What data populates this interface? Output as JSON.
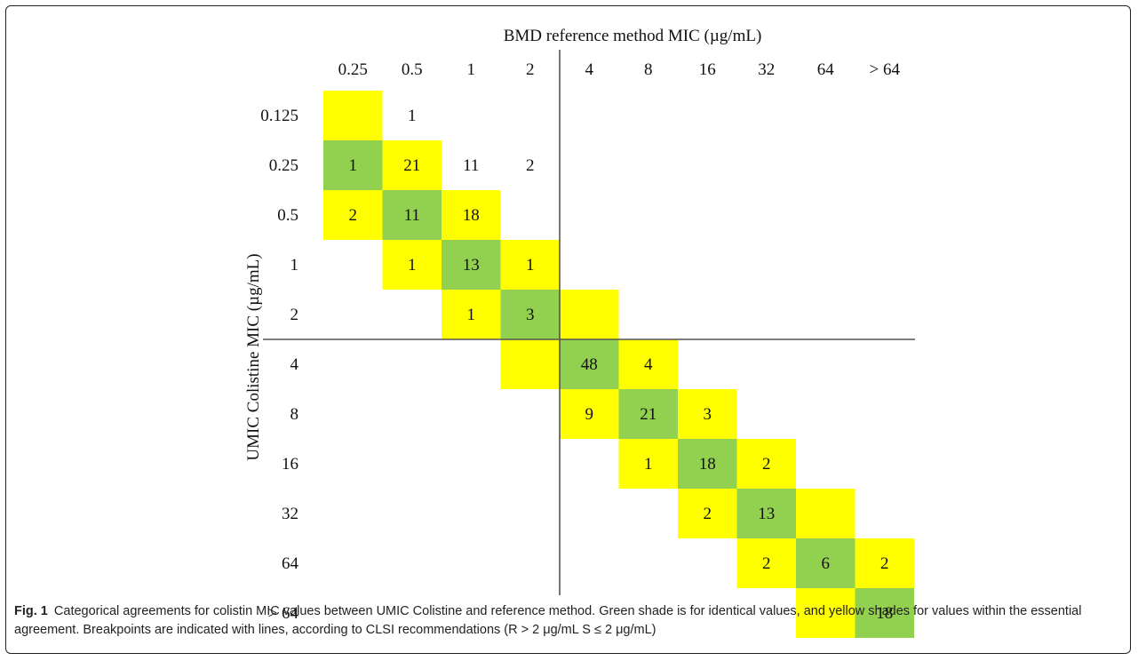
{
  "caption": {
    "label": "Fig. 1",
    "text": "Categorical agreements for colistin MIC values between UMIC Colistine and reference method. Green shade is for identical values, and yellow shades for values within the essential agreement. Breakpoints are indicated with lines, according to CLSI recommendations (R > 2 μg/mL S ≤ 2 μg/mL)"
  },
  "chart_data": {
    "type": "heatmap",
    "title": "",
    "xlabel": "BMD reference method MIC (µg/mL)",
    "ylabel": "UMIC Colistine MIC (µg/mL)",
    "x_categories": [
      "0.25",
      "0.5",
      "1",
      "2",
      "4",
      "8",
      "16",
      "32",
      "64",
      "> 64"
    ],
    "y_categories": [
      "0.125",
      "0.25",
      "0.5",
      "1",
      "2",
      "4",
      "8",
      "16",
      "32",
      "64",
      "> 64"
    ],
    "colors": {
      "identical": "#92d050",
      "essential_agreement": "#ffff00",
      "text": "#111111",
      "line": "#555555"
    },
    "legend": {
      "identical": "Green shade is for identical values",
      "essential_agreement": "yellow shades for values within the essential agreement"
    },
    "breakpoints": {
      "x_between": [
        "2",
        "4"
      ],
      "y_between": [
        "2",
        "4"
      ]
    },
    "cells": [
      {
        "row": "0.125",
        "col": "0.25",
        "shade": "yellow",
        "value": null
      },
      {
        "row": "0.125",
        "col": "0.5",
        "shade": "none",
        "value": 1
      },
      {
        "row": "0.25",
        "col": "0.25",
        "shade": "green",
        "value": 1
      },
      {
        "row": "0.25",
        "col": "0.5",
        "shade": "yellow",
        "value": 21
      },
      {
        "row": "0.25",
        "col": "1",
        "shade": "none",
        "value": 11
      },
      {
        "row": "0.25",
        "col": "2",
        "shade": "none",
        "value": 2
      },
      {
        "row": "0.5",
        "col": "0.25",
        "shade": "yellow",
        "value": 2
      },
      {
        "row": "0.5",
        "col": "0.5",
        "shade": "green",
        "value": 11
      },
      {
        "row": "0.5",
        "col": "1",
        "shade": "yellow",
        "value": 18
      },
      {
        "row": "1",
        "col": "0.5",
        "shade": "yellow",
        "value": 1
      },
      {
        "row": "1",
        "col": "1",
        "shade": "green",
        "value": 13
      },
      {
        "row": "1",
        "col": "2",
        "shade": "yellow",
        "value": 1
      },
      {
        "row": "2",
        "col": "1",
        "shade": "yellow",
        "value": 1
      },
      {
        "row": "2",
        "col": "2",
        "shade": "green",
        "value": 3
      },
      {
        "row": "2",
        "col": "4",
        "shade": "yellow",
        "value": null
      },
      {
        "row": "4",
        "col": "2",
        "shade": "yellow",
        "value": null
      },
      {
        "row": "4",
        "col": "4",
        "shade": "green",
        "value": 48
      },
      {
        "row": "4",
        "col": "8",
        "shade": "yellow",
        "value": 4
      },
      {
        "row": "8",
        "col": "4",
        "shade": "yellow",
        "value": 9
      },
      {
        "row": "8",
        "col": "8",
        "shade": "green",
        "value": 21
      },
      {
        "row": "8",
        "col": "16",
        "shade": "yellow",
        "value": 3
      },
      {
        "row": "16",
        "col": "8",
        "shade": "yellow",
        "value": 1
      },
      {
        "row": "16",
        "col": "16",
        "shade": "green",
        "value": 18
      },
      {
        "row": "16",
        "col": "32",
        "shade": "yellow",
        "value": 2
      },
      {
        "row": "32",
        "col": "16",
        "shade": "yellow",
        "value": 2
      },
      {
        "row": "32",
        "col": "32",
        "shade": "green",
        "value": 13
      },
      {
        "row": "32",
        "col": "64",
        "shade": "yellow",
        "value": null
      },
      {
        "row": "64",
        "col": "32",
        "shade": "yellow",
        "value": 2
      },
      {
        "row": "64",
        "col": "64",
        "shade": "green",
        "value": 6
      },
      {
        "row": "64",
        "col": "> 64",
        "shade": "yellow",
        "value": 2
      },
      {
        "row": "> 64",
        "col": "64",
        "shade": "yellow",
        "value": null
      },
      {
        "row": "> 64",
        "col": "> 64",
        "shade": "green",
        "value": 18
      }
    ]
  }
}
